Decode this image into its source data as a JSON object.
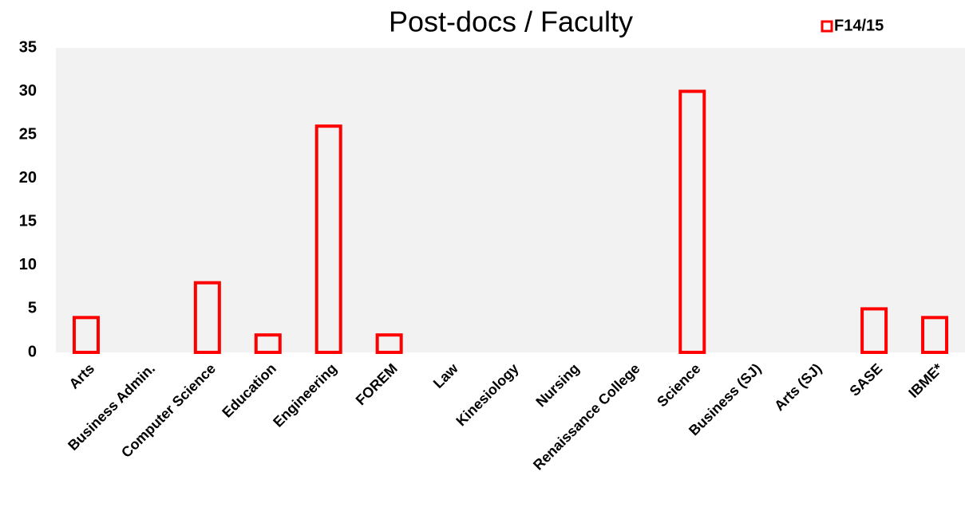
{
  "chart_data": {
    "type": "bar",
    "title": "Post-docs / Faculty",
    "categories": [
      "Arts",
      "Business Admin.",
      "Computer Science",
      "Education",
      "Engineering",
      "FOREM",
      "Law",
      "Kinesiology",
      "Nursing",
      "Renaissance College",
      "Science",
      "Business (SJ)",
      "Arts (SJ)",
      "SASE",
      "IBME*"
    ],
    "series": [
      {
        "name": "F14/15",
        "color": "#ff0000",
        "values": [
          4,
          0,
          8,
          2,
          26,
          2,
          0,
          0,
          0,
          0,
          30,
          0,
          0,
          5,
          4
        ]
      }
    ],
    "ylim": [
      0,
      35
    ],
    "yticks": [
      0,
      5,
      10,
      15,
      20,
      25,
      30,
      35
    ],
    "grid": false,
    "legend": "top-right"
  }
}
